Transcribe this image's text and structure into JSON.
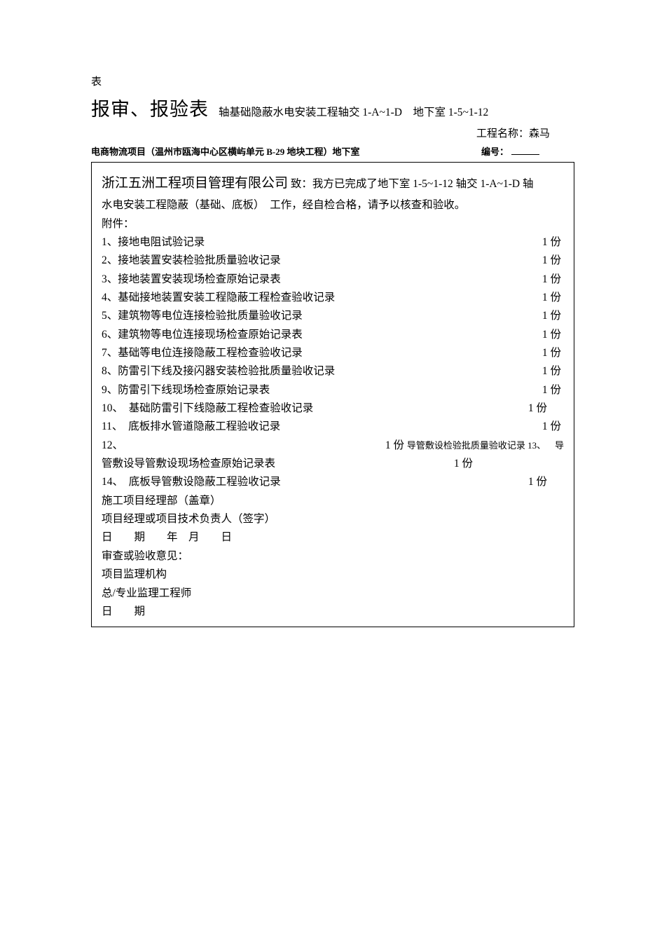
{
  "header_label": "表",
  "big_title": "报审、报验表",
  "subtitle": "轴基础隐蔽水电安装工程轴交 1-A~1-D　地下室 1-5~1-12",
  "proj_prefix": "工程名称：森马",
  "sub_left": "电商物流项目（温州市瓯海中心区横屿单元 B-29 地块工程）地下室",
  "sub_right_label": "编号：",
  "company": "浙江五洲工程项目管理有限公司",
  "intro_tail": "致：我方已完成了地下室 1-5~1-12 轴交 1-A~1-D 轴",
  "intro_line2": "水电安装工程隐蔽（基础、底板）　工作，经自检合格，请予以核查和验收。",
  "attach_label": "附件：",
  "items": [
    {
      "n": "1、",
      "t": "接地电阻试验记录",
      "c": "1 份"
    },
    {
      "n": "2、",
      "t": "接地装置安装检验批质量验收记录",
      "c": "1 份"
    },
    {
      "n": "3、",
      "t": "接地装置安装现场检查原始记录表",
      "c": "1 份"
    },
    {
      "n": "4、",
      "t": "基础接地装置安装工程隐蔽工程检查验收记录",
      "c": "1 份"
    },
    {
      "n": "5、",
      "t": "建筑物等电位连接检验批质量验收记录",
      "c": "1 份"
    },
    {
      "n": "6、",
      "t": "建筑物等电位连接现场检查原始记录表",
      "c": "1 份"
    },
    {
      "n": "7、",
      "t": "基础等电位连接隐蔽工程检查验收记录",
      "c": "1 份"
    },
    {
      "n": "8、",
      "t": "防雷引下线及接闪器安装检验批质量验收记录",
      "c": "1 份"
    },
    {
      "n": "9、",
      "t": "防雷引下线现场检查原始记录表",
      "c": "1 份"
    },
    {
      "n": "10、",
      "t": "基础防雷引下线隐蔽工程检查验收记录",
      "c": "1 份"
    },
    {
      "n": "11、",
      "t": "底板排水管道隐蔽工程验收记录",
      "c": "1 份"
    }
  ],
  "item12_left": "12、",
  "item12_right_a": "1 份",
  "item12_right_b": "导管敷设检验批质量验收记录 13、",
  "item12_right_c": "导",
  "item13_wrap_left": "管敷设导管敷设现场检查原始记录表",
  "item13_wrap_right": "1 份",
  "item14_left": "14、　底板导管敷设隐蔽工程验收记录",
  "item14_right": "1 份",
  "sign1": "施工项目经理部（盖章）",
  "sign2": "项目经理或项目技术负责人（签字）",
  "sign3": "日　　期　　年　月　　日",
  "sign4": "审查或验收意见：",
  "sign5": "项目监理机构",
  "sign6": "总/专业监理工程师",
  "sign7": "日　　期"
}
